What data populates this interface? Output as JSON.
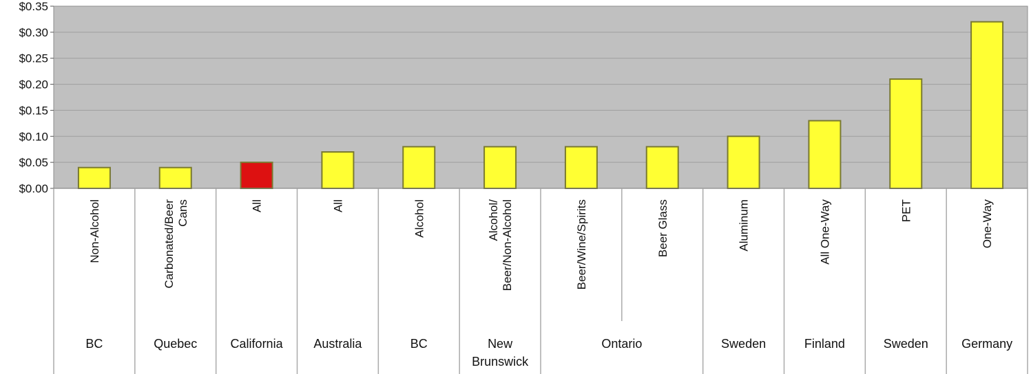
{
  "chart_data": {
    "type": "bar",
    "title": "",
    "xlabel": "",
    "ylabel": "",
    "ylim": [
      0,
      0.35
    ],
    "y_ticks": [
      "$0.00",
      "$0.05",
      "$0.10",
      "$0.15",
      "$0.20",
      "$0.25",
      "$0.30",
      "$0.35"
    ],
    "grid": "horizontal",
    "plot_background": "#c0c0c0",
    "colors": {
      "default": "#ffff33",
      "highlight": "#dd1111",
      "outline": "#7a7a30"
    },
    "categories": [
      {
        "label": [
          "Non-Alcohol"
        ],
        "region": [
          "BC"
        ],
        "value": 0.04,
        "highlight": false
      },
      {
        "label": [
          "Carbonated/Beer",
          "Cans"
        ],
        "region": [
          "Quebec"
        ],
        "value": 0.04,
        "highlight": false
      },
      {
        "label": [
          "All"
        ],
        "region": [
          "California"
        ],
        "value": 0.05,
        "highlight": true
      },
      {
        "label": [
          "All"
        ],
        "region": [
          "Australia"
        ],
        "value": 0.07,
        "highlight": false
      },
      {
        "label": [
          "Alcohol"
        ],
        "region": [
          "BC"
        ],
        "value": 0.08,
        "highlight": false
      },
      {
        "label": [
          "Alcohol/",
          "Beer/Non-Alcohol"
        ],
        "region": [
          "New",
          "Brunswick"
        ],
        "value": 0.08,
        "highlight": false
      },
      {
        "label": [
          "Beer/Wine/Spirits"
        ],
        "region": [
          "Ontario"
        ],
        "value": 0.08,
        "highlight": false
      },
      {
        "label": [
          "Beer Glass"
        ],
        "region": [
          "Ontario"
        ],
        "value": 0.08,
        "highlight": false
      },
      {
        "label": [
          "Aluminum"
        ],
        "region": [
          "Sweden"
        ],
        "value": 0.1,
        "highlight": false
      },
      {
        "label": [
          "All One-Way"
        ],
        "region": [
          "Finland"
        ],
        "value": 0.13,
        "highlight": false
      },
      {
        "label": [
          "PET"
        ],
        "region": [
          "Sweden"
        ],
        "value": 0.21,
        "highlight": false
      },
      {
        "label": [
          "One-Way"
        ],
        "region": [
          "Germany"
        ],
        "value": 0.32,
        "highlight": false
      }
    ]
  }
}
